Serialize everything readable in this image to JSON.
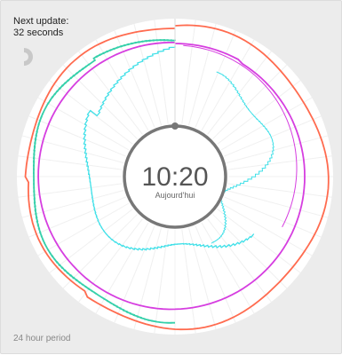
{
  "header": {
    "update_label": "Next update:",
    "update_value": "32 seconds"
  },
  "footer": {
    "period_label": "24 hour period"
  },
  "clock": {
    "time": "10:20",
    "day": "Aujourd'hui"
  },
  "icons": {
    "countdown": "countdown-ring-icon"
  },
  "colors": {
    "background": "#ececec",
    "dial": "#ffffff",
    "ring": "#777777",
    "series_red": "#ff6b4f",
    "series_teal": "#35d0aa",
    "series_magenta": "#d63ee0",
    "series_cyan": "#40e0e8"
  }
}
